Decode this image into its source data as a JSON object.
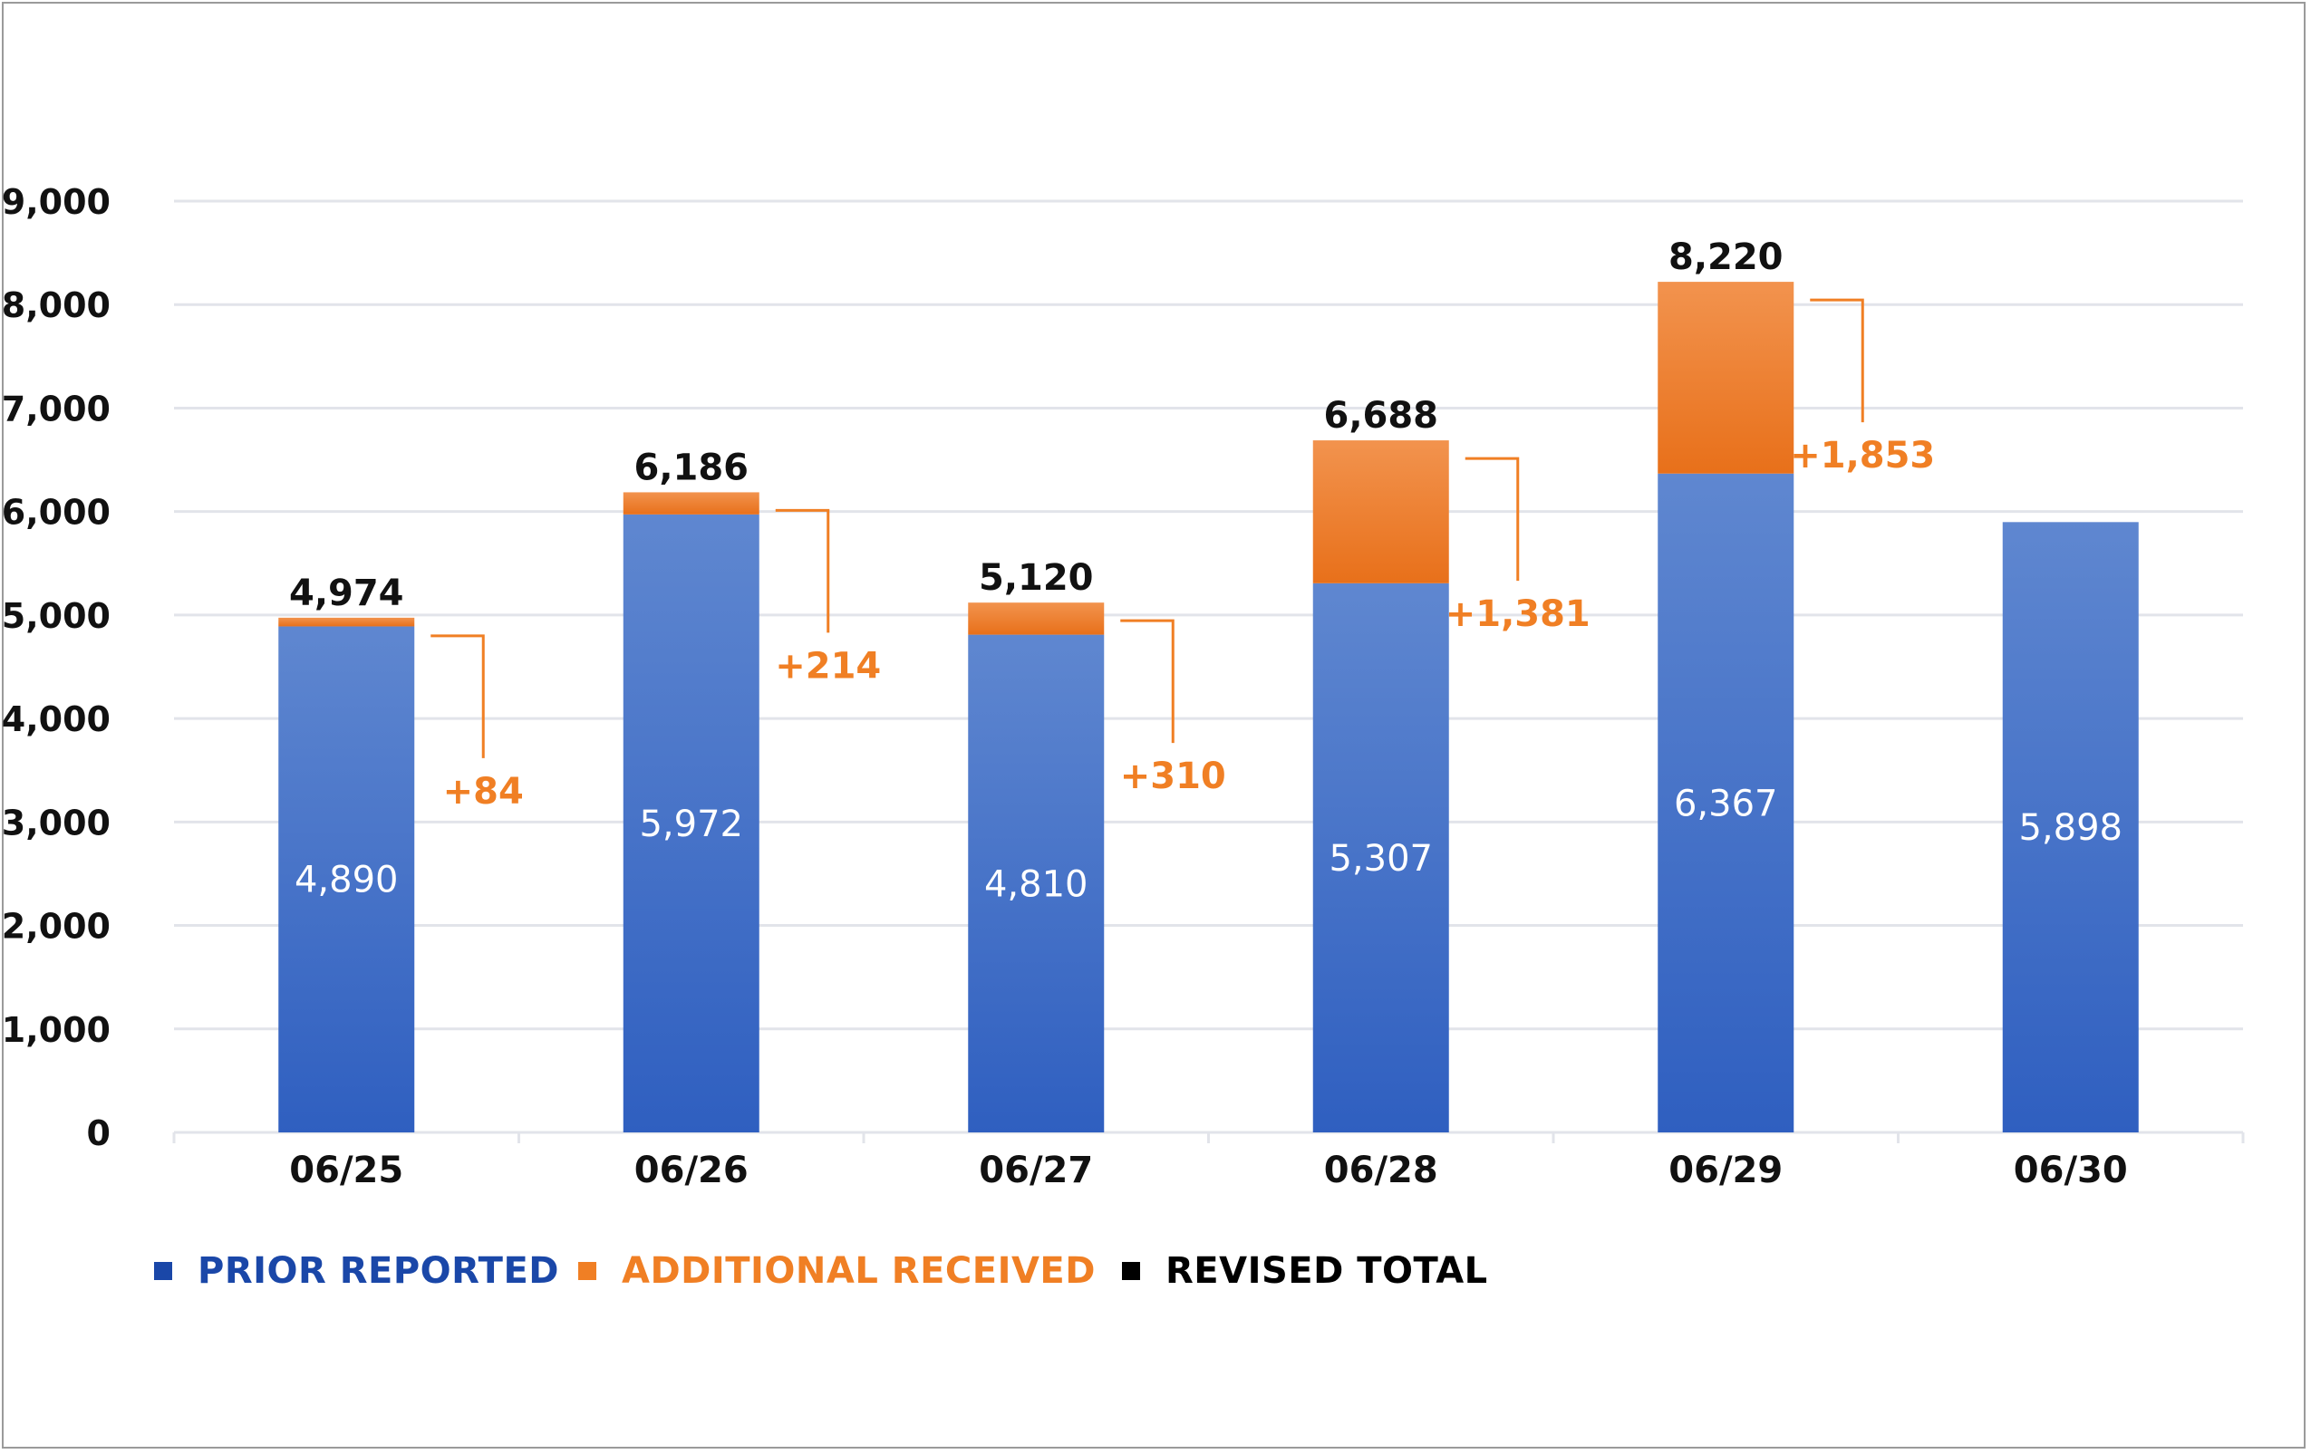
{
  "chart_data": {
    "type": "bar",
    "stacked": true,
    "title": "",
    "xlabel": "",
    "ylabel": "",
    "ylim": [
      0,
      9000
    ],
    "yticks": [
      0,
      1000,
      2000,
      3000,
      4000,
      5000,
      6000,
      7000,
      8000,
      9000
    ],
    "ytick_labels": [
      "0",
      "1,000",
      "2,000",
      "3,000",
      "4,000",
      "5,000",
      "6,000",
      "7,000",
      "8,000",
      "9,000"
    ],
    "grid": true,
    "categories": [
      "06/25",
      "06/26",
      "06/27",
      "06/28",
      "06/29",
      "06/30"
    ],
    "series": [
      {
        "name": "PRIOR REPORTED",
        "color": "#3a6cc6",
        "values": [
          4890,
          5972,
          4810,
          5307,
          6367,
          5898
        ],
        "labels": [
          "4,890",
          "5,972",
          "4,810",
          "5,307",
          "6,367",
          "5,898"
        ]
      },
      {
        "name": "ADDITIONAL RECEIVED",
        "color": "#f07f24",
        "values": [
          84,
          214,
          310,
          1381,
          1853,
          0
        ],
        "labels": [
          "+84",
          "+214",
          "+310",
          "+1,381",
          "+1,853",
          ""
        ]
      }
    ],
    "totals": {
      "name": "REVISED TOTAL",
      "color": "#000000",
      "values": [
        4974,
        6186,
        5120,
        6688,
        8220,
        null
      ],
      "labels": [
        "4,974",
        "6,186",
        "5,120",
        "6,688",
        "8,220",
        ""
      ]
    },
    "legend_position": "bottom-left"
  },
  "legend": {
    "items": [
      {
        "label": "PRIOR REPORTED",
        "color": "#1a47a8"
      },
      {
        "label": "ADDITIONAL RECEIVED",
        "color": "#f07f24"
      },
      {
        "label": "REVISED TOTAL",
        "color": "#000000"
      }
    ]
  }
}
